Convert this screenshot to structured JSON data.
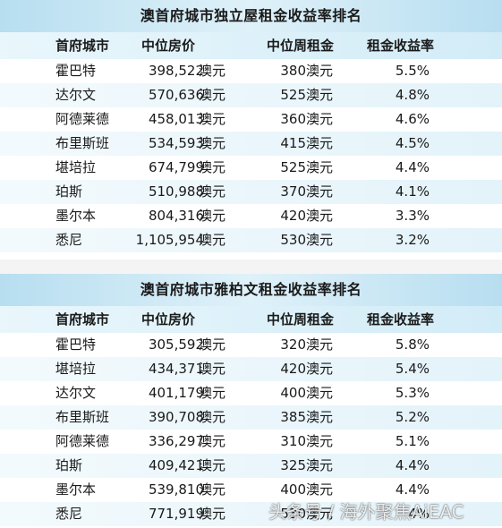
{
  "table1": {
    "title": "澳首府城市独立屋租金收益率排名",
    "headers": {
      "city": "首府城市",
      "price": "中位房价",
      "rent": "中位周租金",
      "yield": "租金收益率"
    },
    "unit": "澳元",
    "rows": [
      {
        "city": "霍巴特",
        "price": "398,522",
        "rent": "380",
        "yield": "5.5%"
      },
      {
        "city": "达尔文",
        "price": "570,636",
        "rent": "525",
        "yield": "4.8%"
      },
      {
        "city": "阿德莱德",
        "price": "458,013",
        "rent": "360",
        "yield": "4.6%"
      },
      {
        "city": "布里斯班",
        "price": "534,593",
        "rent": "415",
        "yield": "4.5%"
      },
      {
        "city": "堪培拉",
        "price": "674,799",
        "rent": "525",
        "yield": "4.4%"
      },
      {
        "city": "珀斯",
        "price": "510,988",
        "rent": "370",
        "yield": "4.1%"
      },
      {
        "city": "墨尔本",
        "price": "804,316",
        "rent": "420",
        "yield": "3.3%"
      },
      {
        "city": "悉尼",
        "price": "1,105,954",
        "rent": "530",
        "yield": "3.2%"
      }
    ]
  },
  "table2": {
    "title": "澳首府城市雅柏文租金收益率排名",
    "headers": {
      "city": "首府城市",
      "price": "中位房价",
      "rent": "中位周租金",
      "yield": "租金收益率"
    },
    "unit": "澳元",
    "rows": [
      {
        "city": "霍巴特",
        "price": "305,592",
        "rent": "320",
        "yield": "5.8%"
      },
      {
        "city": "堪培拉",
        "price": "434,371",
        "rent": "420",
        "yield": "5.4%"
      },
      {
        "city": "达尔文",
        "price": "401,179",
        "rent": "400",
        "yield": "5.3%"
      },
      {
        "city": "布里斯班",
        "price": "390,708",
        "rent": "385",
        "yield": "5.2%"
      },
      {
        "city": "阿德莱德",
        "price": "336,297",
        "rent": "310",
        "yield": "5.1%"
      },
      {
        "city": "珀斯",
        "price": "409,421",
        "rent": "325",
        "yield": "4.4%"
      },
      {
        "city": "墨尔本",
        "price": "539,810",
        "rent": "400",
        "yield": "4.4%"
      },
      {
        "city": "悉尼",
        "price": "771,919",
        "rent": "530",
        "yield": "4%"
      }
    ]
  },
  "watermark": "头条号 / 海外聚焦AiEAC"
}
